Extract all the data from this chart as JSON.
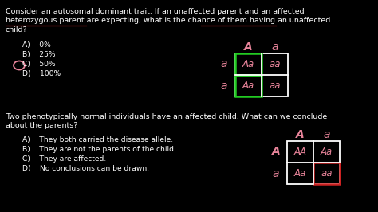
{
  "bg_color": "#000000",
  "text_color": "#ffffff",
  "pink_color": "#e8849a",
  "green_color": "#22cc22",
  "red_color": "#cc2222",
  "q1_lines": [
    "Consider an autosomal dominant trait. If an unaffected parent and an affected",
    "heterozygous parent are expecting, what is the chance of them having an unaffected",
    "child?"
  ],
  "q1_choices": [
    "A)    0%",
    "B)    25%",
    "C)    50%",
    "D)    100%"
  ],
  "q1_circle_choice": 2,
  "punnett1_col_headers": [
    "A",
    "a"
  ],
  "punnett1_row_headers": [
    "a",
    "a"
  ],
  "punnett1_cells": [
    [
      "Aa",
      "aa"
    ],
    [
      "Aa",
      "aa"
    ]
  ],
  "punnett1_green_col": 0,
  "punnett1_green_row": null,
  "q2_lines": [
    "Two phenotypically normal individuals have an affected child. What can we conclude",
    "about the parents?"
  ],
  "q2_choices": [
    "A)    They both carried the disease allele.",
    "B)    They are not the parents of the child.",
    "C)    They are affected.",
    "D)    No conclusions can be drawn."
  ],
  "punnett2_col_headers": [
    "A",
    "a"
  ],
  "punnett2_row_headers": [
    "A",
    "a"
  ],
  "punnett2_cells": [
    [
      "AA",
      "Aa"
    ],
    [
      "Aa",
      "aa"
    ]
  ],
  "punnett2_red_cell": [
    1,
    1
  ],
  "fs_body": 6.8,
  "fs_choice": 6.6,
  "fs_punnett_header": 10.0,
  "fs_punnett_cell": 8.5
}
